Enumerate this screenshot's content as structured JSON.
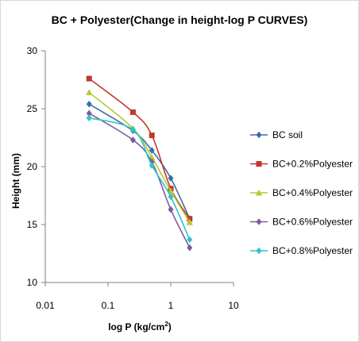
{
  "chart_data": {
    "type": "line",
    "title": "BC + Polyester(Change in height-log  P CURVES)",
    "xlabel_main": "log P (kg/cm",
    "xlabel_sup": "2",
    "xlabel_end": ")",
    "ylabel": "Height (mm)",
    "x_scale": "log",
    "xlim": [
      0.01,
      10
    ],
    "ylim": [
      10,
      30
    ],
    "xticks": [
      "0.01",
      "0.1",
      "1",
      "10"
    ],
    "xtick_values": [
      0.01,
      0.1,
      1,
      10
    ],
    "yticks": [
      "10",
      "15",
      "20",
      "25",
      "30"
    ],
    "ytick_values": [
      10,
      15,
      20,
      25,
      30
    ],
    "grid": false,
    "legend_position": "right",
    "x": [
      0.05,
      0.25,
      0.5,
      1,
      2
    ],
    "series": [
      {
        "name": "BC soil",
        "color": "#3a6ea5",
        "marker": "diamond",
        "values": [
          25.4,
          23.1,
          21.4,
          19.0,
          15.5
        ]
      },
      {
        "name": "BC+0.2%Polyester",
        "color": "#c0392b",
        "marker": "square",
        "values": [
          27.6,
          24.7,
          22.7,
          18.1,
          15.5
        ]
      },
      {
        "name": "BC+0.4%Polyester",
        "color": "#b5c934",
        "marker": "triangle",
        "values": [
          26.4,
          23.3,
          20.8,
          17.9,
          15.2
        ]
      },
      {
        "name": "BC+0.6%Polyester",
        "color": "#7d5a9e",
        "marker": "diamond",
        "values": [
          24.6,
          22.3,
          20.4,
          16.3,
          13.0
        ]
      },
      {
        "name": "BC+0.8%Polyester",
        "color": "#2ec4c9",
        "marker": "diamond",
        "values": [
          24.2,
          23.2,
          20.1,
          17.4,
          13.7
        ]
      }
    ]
  }
}
